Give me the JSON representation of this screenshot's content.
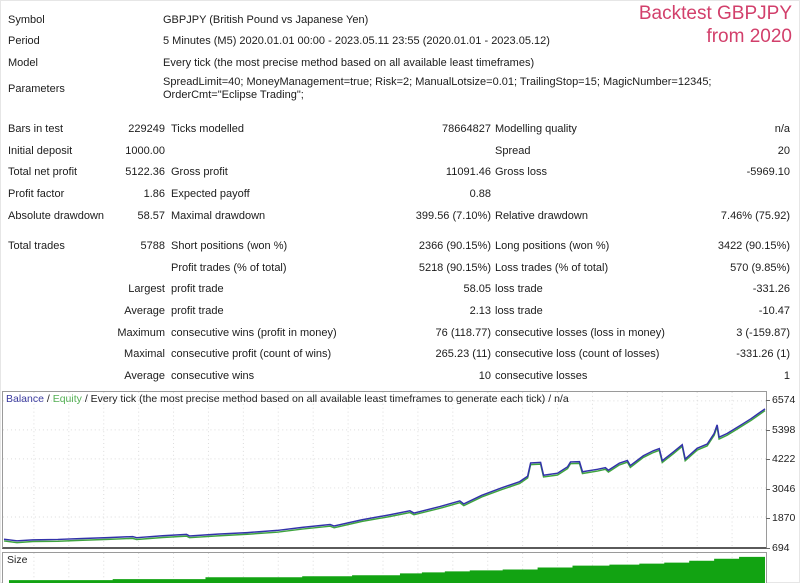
{
  "title": {
    "line1": "Backtest GBPJPY",
    "line2": "from 2020",
    "color": "#d23f6b"
  },
  "info": [
    {
      "label": "Symbol",
      "value": "GBPJPY (British Pound vs Japanese Yen)"
    },
    {
      "label": "Period",
      "value": "5 Minutes (M5) 2020.01.01 00:00 - 2023.05.11 23:55 (2020.01.01 - 2023.05.12)"
    },
    {
      "label": "Model",
      "value": "Every tick (the most precise method based on all available least timeframes)"
    },
    {
      "label": "Parameters",
      "value": "SpreadLimit=40; MoneyManagement=true; Risk=2; ManualLotsize=0.01; TrailingStop=15; MagicNumber=12345; OrderCmt=\"Eclipse Trading\";"
    }
  ],
  "stats": [
    {
      "cells": [
        "Bars in test",
        "229249",
        "Ticks modelled",
        "78664827",
        "Modelling quality",
        "n/a"
      ]
    },
    {
      "cells": [
        "Initial deposit",
        "1000.00",
        "",
        "",
        "Spread",
        "20"
      ]
    },
    {
      "cells": [
        "Total net profit",
        "5122.36",
        "Gross profit",
        "11091.46",
        "Gross loss",
        "-5969.10"
      ]
    },
    {
      "cells": [
        "Profit factor",
        "1.86",
        "Expected payoff",
        "0.88",
        "",
        ""
      ]
    },
    {
      "cells": [
        "Absolute drawdown",
        "58.57",
        "Maximal drawdown",
        "399.56 (7.10%)",
        "Relative drawdown",
        "7.46% (75.92)"
      ]
    },
    {
      "gap_before": true,
      "cells": [
        "Total trades",
        "5788",
        "Short positions (won %)",
        "2366 (90.15%)",
        "Long positions (won %)",
        "3422 (90.15%)"
      ]
    },
    {
      "cells": [
        "",
        "",
        "Profit trades (% of total)",
        "5218 (90.15%)",
        "Loss trades (% of total)",
        "570 (9.85%)"
      ]
    },
    {
      "cells": [
        "",
        "Largest",
        "profit trade",
        "58.05",
        "loss trade",
        "-331.26"
      ]
    },
    {
      "cells": [
        "",
        "Average",
        "profit trade",
        "2.13",
        "loss trade",
        "-10.47"
      ]
    },
    {
      "cells": [
        "",
        "Maximum",
        "consecutive wins (profit in money)",
        "76 (118.77)",
        "consecutive losses (loss in money)",
        "3 (-159.87)"
      ]
    },
    {
      "cells": [
        "",
        "Maximal",
        "consecutive profit (count of wins)",
        "265.23 (11)",
        "consecutive loss (count of losses)",
        "-331.26 (1)"
      ]
    },
    {
      "cells": [
        "",
        "Average",
        "consecutive wins",
        "10",
        "consecutive losses",
        "1"
      ]
    }
  ],
  "chart": {
    "legend": {
      "balance_label": "Balance",
      "separator": " / ",
      "equity_label": "Equity",
      "description": "Every tick (the most precise method based on all available least timeframes to generate each tick)",
      "na": "n/a"
    },
    "size_label": "Size",
    "colors": {
      "balance": "#3232aa",
      "equity": "#3fa43f",
      "size_bars": "#12a312",
      "title": "#d23f6b"
    }
  },
  "chart_data": {
    "type": "line",
    "title": "Balance / Equity curve",
    "ylim": [
      694,
      6574
    ],
    "y_ticks": [
      6574,
      5398,
      4222,
      3046,
      1870,
      694
    ],
    "grid": true,
    "equity_offset": -70,
    "series": [
      {
        "name": "Balance",
        "points": [
          [
            1,
            970
          ],
          [
            14,
            905
          ],
          [
            30,
            945
          ],
          [
            55,
            960
          ],
          [
            80,
            1000
          ],
          [
            105,
            1035
          ],
          [
            130,
            1075
          ],
          [
            134,
            1030
          ],
          [
            160,
            1110
          ],
          [
            184,
            1165
          ],
          [
            187,
            1100
          ],
          [
            215,
            1175
          ],
          [
            245,
            1240
          ],
          [
            275,
            1325
          ],
          [
            300,
            1450
          ],
          [
            328,
            1565
          ],
          [
            332,
            1505
          ],
          [
            360,
            1760
          ],
          [
            388,
            1960
          ],
          [
            408,
            2120
          ],
          [
            412,
            2030
          ],
          [
            438,
            2290
          ],
          [
            458,
            2520
          ],
          [
            462,
            2400
          ],
          [
            480,
            2750
          ],
          [
            500,
            3050
          ],
          [
            518,
            3300
          ],
          [
            526,
            3520
          ],
          [
            529,
            4060
          ],
          [
            539,
            4080
          ],
          [
            542,
            3560
          ],
          [
            556,
            3640
          ],
          [
            566,
            3900
          ],
          [
            569,
            4100
          ],
          [
            578,
            4110
          ],
          [
            581,
            3700
          ],
          [
            596,
            3800
          ],
          [
            604,
            3870
          ],
          [
            607,
            3760
          ],
          [
            618,
            4050
          ],
          [
            626,
            4160
          ],
          [
            629,
            3950
          ],
          [
            642,
            4350
          ],
          [
            652,
            4550
          ],
          [
            658,
            4640
          ],
          [
            661,
            4150
          ],
          [
            672,
            4500
          ],
          [
            681,
            4800
          ],
          [
            684,
            4220
          ],
          [
            696,
            4650
          ],
          [
            706,
            4820
          ],
          [
            713,
            5250
          ],
          [
            716,
            5600
          ],
          [
            718,
            5100
          ],
          [
            726,
            5250
          ],
          [
            734,
            5450
          ],
          [
            742,
            5650
          ],
          [
            750,
            5850
          ],
          [
            757,
            6050
          ],
          [
            764,
            6250
          ]
        ]
      },
      {
        "name": "Equity",
        "derived": "Balance + equity_offset"
      }
    ],
    "size_steps": [
      [
        6,
        3
      ],
      [
        110,
        4
      ],
      [
        203,
        6
      ],
      [
        300,
        7
      ],
      [
        350,
        8
      ],
      [
        398,
        10
      ],
      [
        420,
        11
      ],
      [
        443,
        12
      ],
      [
        468,
        13
      ],
      [
        501,
        14
      ],
      [
        536,
        16
      ],
      [
        571,
        18
      ],
      [
        608,
        19
      ],
      [
        638,
        20
      ],
      [
        663,
        21
      ],
      [
        688,
        23
      ],
      [
        713,
        25
      ],
      [
        738,
        27
      ]
    ]
  }
}
